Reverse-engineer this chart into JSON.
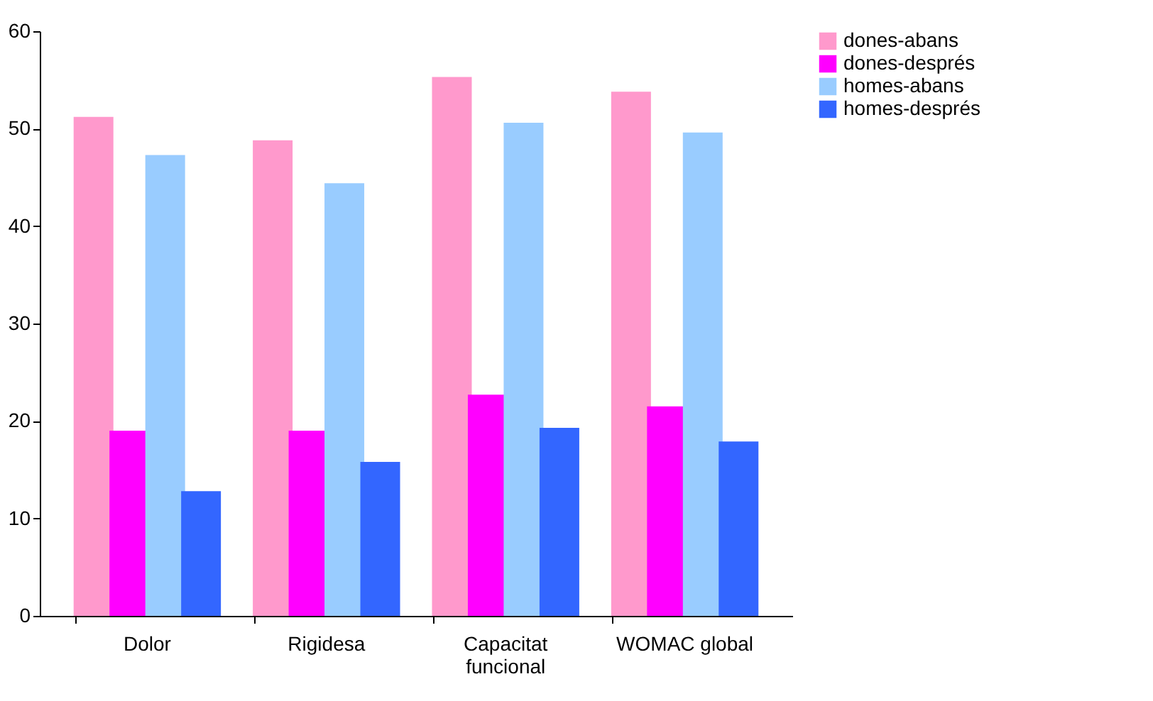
{
  "chart_data": {
    "type": "bar",
    "categories": [
      "Dolor",
      "Rigidesa",
      "Capacitat funcional",
      "WOMAC global"
    ],
    "series": [
      {
        "name": "dones-abans",
        "color": "#ff99cc",
        "values": [
          51.2,
          48.8,
          55.3,
          53.8
        ]
      },
      {
        "name": "dones-després",
        "color": "#ff00ff",
        "values": [
          19.0,
          19.0,
          22.7,
          21.5
        ]
      },
      {
        "name": "homes-abans",
        "color": "#99ccff",
        "values": [
          47.3,
          44.4,
          50.6,
          49.6
        ]
      },
      {
        "name": "homes-després",
        "color": "#3366ff",
        "values": [
          12.8,
          15.8,
          19.3,
          17.9
        ]
      }
    ],
    "ylim": [
      0,
      60
    ],
    "yticks": [
      0,
      10,
      20,
      30,
      40,
      50,
      60
    ],
    "grid": false,
    "legend": "right"
  }
}
